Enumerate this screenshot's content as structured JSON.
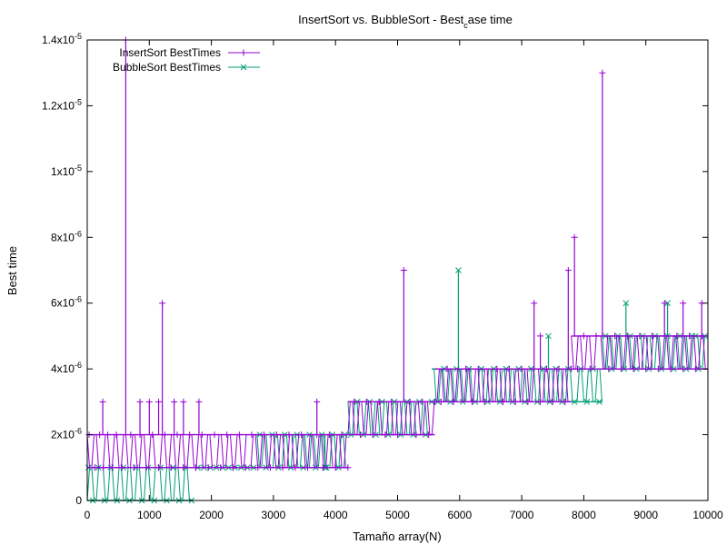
{
  "chart_data": {
    "type": "line",
    "title": "InsertSort vs. BubbleSort - Best",
    "title_subscript": "c",
    "title_suffix": "ase time",
    "xlabel": "Tamaño array(N)",
    "ylabel": "Best time",
    "xlim": [
      0,
      10000
    ],
    "ylim": [
      0,
      1.4e-05
    ],
    "grid": false,
    "legend_position": "top-left",
    "x_ticks": [
      {
        "value": 0,
        "label": "0"
      },
      {
        "value": 1000,
        "label": "1000"
      },
      {
        "value": 2000,
        "label": "2000"
      },
      {
        "value": 3000,
        "label": "3000"
      },
      {
        "value": 4000,
        "label": "4000"
      },
      {
        "value": 5000,
        "label": "5000"
      },
      {
        "value": 6000,
        "label": "6000"
      },
      {
        "value": 7000,
        "label": "7000"
      },
      {
        "value": 8000,
        "label": "8000"
      },
      {
        "value": 9000,
        "label": "9000"
      },
      {
        "value": 10000,
        "label": "10000"
      }
    ],
    "y_ticks": [
      {
        "value": 0,
        "base": "0",
        "exp": ""
      },
      {
        "value": 2e-06,
        "base": "2x10",
        "exp": "-6"
      },
      {
        "value": 4e-06,
        "base": "4x10",
        "exp": "-6"
      },
      {
        "value": 6e-06,
        "base": "6x10",
        "exp": "-6"
      },
      {
        "value": 8e-06,
        "base": "8x10",
        "exp": "-6"
      },
      {
        "value": 1e-05,
        "base": "1x10",
        "exp": "-5"
      },
      {
        "value": 1.2e-05,
        "base": "1.2x10",
        "exp": "-5"
      },
      {
        "value": 1.4e-05,
        "base": "1.4x10",
        "exp": "-5"
      }
    ],
    "series": [
      {
        "name": "InsertSort BestTimes",
        "color": "#9400d3",
        "marker": "plus",
        "levels": [
          {
            "x_start": 0,
            "x_end": 2600,
            "low": 1e-06,
            "high": 2e-06
          },
          {
            "x_start": 2600,
            "x_end": 4200,
            "low": 1e-06,
            "high": 2e-06
          },
          {
            "x_start": 4200,
            "x_end": 5600,
            "low": 2e-06,
            "high": 3e-06
          },
          {
            "x_start": 5600,
            "x_end": 6500,
            "low": 3e-06,
            "high": 4e-06
          },
          {
            "x_start": 6500,
            "x_end": 7800,
            "low": 3e-06,
            "high": 4e-06
          },
          {
            "x_start": 7800,
            "x_end": 10000,
            "low": 4e-06,
            "high": 5e-06
          }
        ],
        "markers_x": [
          30,
          120,
          200,
          260,
          330,
          400,
          470,
          560,
          700,
          760,
          850,
          950,
          1050,
          1150,
          1250,
          1350,
          1450,
          1550,
          1650,
          1750,
          1850,
          1950,
          2050,
          2150,
          2250,
          2350,
          2450,
          2550,
          2650,
          2750,
          2850,
          2950,
          3050,
          3150,
          3250,
          3350,
          3450,
          3550,
          3700,
          3800,
          3900,
          4000,
          4100,
          4200,
          4300,
          4400,
          4500,
          4600,
          4700,
          4800,
          4900,
          5000,
          5200,
          5300,
          5400,
          5500,
          5600,
          5700,
          5800,
          5900,
          6100,
          6200,
          6300,
          6400,
          6600,
          6700,
          6800,
          6900,
          7000,
          7100,
          7200,
          7300,
          7400,
          7500,
          7600,
          7700,
          7800,
          7900,
          8000,
          8100,
          8200,
          8400,
          8500,
          8600,
          8700,
          8800,
          8900,
          9000,
          9100,
          9200,
          9300,
          9400,
          9500,
          9600,
          9700,
          9800,
          9900
        ],
        "spikes": [
          {
            "x": 250,
            "y": 3e-06
          },
          {
            "x": 620,
            "y": 1.4e-05
          },
          {
            "x": 850,
            "y": 3e-06
          },
          {
            "x": 1000,
            "y": 3e-06
          },
          {
            "x": 1150,
            "y": 3e-06
          },
          {
            "x": 1210,
            "y": 6e-06
          },
          {
            "x": 1400,
            "y": 3e-06
          },
          {
            "x": 1550,
            "y": 3e-06
          },
          {
            "x": 1800,
            "y": 3e-06
          },
          {
            "x": 3700,
            "y": 3e-06
          },
          {
            "x": 5100,
            "y": 7e-06
          },
          {
            "x": 7200,
            "y": 6e-06
          },
          {
            "x": 7300,
            "y": 5e-06
          },
          {
            "x": 7750,
            "y": 7e-06
          },
          {
            "x": 7850,
            "y": 8e-06
          },
          {
            "x": 8300,
            "y": 1.3e-05
          },
          {
            "x": 9300,
            "y": 6e-06
          },
          {
            "x": 9600,
            "y": 6e-06
          },
          {
            "x": 9900,
            "y": 6e-06
          }
        ]
      },
      {
        "name": "BubbleSort BestTimes",
        "color": "#009e73",
        "marker": "cross",
        "levels": [
          {
            "x_start": 0,
            "x_end": 1700,
            "low": 0,
            "high": 1e-06
          },
          {
            "x_start": 1700,
            "x_end": 2700,
            "low": 1e-06,
            "high": 1e-06
          },
          {
            "x_start": 2700,
            "x_end": 4200,
            "low": 1e-06,
            "high": 2e-06
          },
          {
            "x_start": 4200,
            "x_end": 5550,
            "low": 2e-06,
            "high": 3e-06
          },
          {
            "x_start": 5550,
            "x_end": 6500,
            "low": 3e-06,
            "high": 4e-06
          },
          {
            "x_start": 6500,
            "x_end": 8300,
            "low": 3e-06,
            "high": 4e-06
          },
          {
            "x_start": 8300,
            "x_end": 10000,
            "low": 4e-06,
            "high": 5e-06
          }
        ],
        "markers_x": [
          20,
          90,
          180,
          280,
          380,
          480,
          580,
          680,
          780,
          880,
          980,
          1080,
          1180,
          1280,
          1380,
          1480,
          1580,
          1680,
          1780,
          1880,
          1980,
          2080,
          2180,
          2280,
          2380,
          2480,
          2580,
          2680,
          2780,
          2880,
          2980,
          3080,
          3180,
          3280,
          3380,
          3480,
          3580,
          3680,
          3780,
          3850,
          3950,
          4050,
          4150,
          4250,
          4350,
          4450,
          4550,
          4650,
          4750,
          4850,
          4950,
          5050,
          5150,
          5250,
          5350,
          5450,
          5550,
          5650,
          5750,
          5850,
          5950,
          6050,
          6150,
          6250,
          6350,
          6450,
          6550,
          6650,
          6750,
          6850,
          6950,
          7050,
          7150,
          7250,
          7350,
          7450,
          7550,
          7650,
          7750,
          7850,
          7950,
          8050,
          8150,
          8250,
          8350,
          8450,
          8550,
          8650,
          8750,
          8850,
          8950,
          9050,
          9150,
          9250,
          9350,
          9450,
          9550,
          9650,
          9750,
          9850,
          9950
        ],
        "spikes": [
          {
            "x": 3830,
            "y": 1e-06
          },
          {
            "x": 5980,
            "y": 7e-06
          },
          {
            "x": 7430,
            "y": 5e-06
          },
          {
            "x": 8680,
            "y": 6e-06
          },
          {
            "x": 9350,
            "y": 6e-06
          },
          {
            "x": 9800,
            "y": 5e-06
          }
        ]
      }
    ]
  }
}
